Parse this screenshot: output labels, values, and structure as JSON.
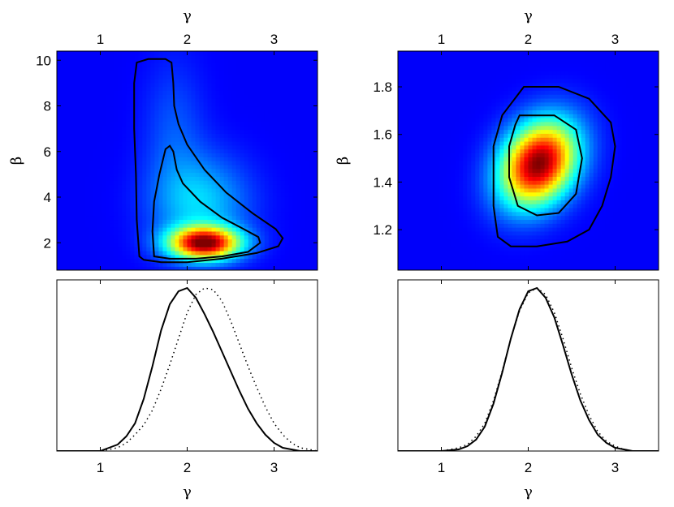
{
  "chart_data": [
    {
      "id": "top-left",
      "type": "heatmap",
      "xlabel": "γ",
      "ylabel": "β",
      "xlim": [
        0.5,
        3.5
      ],
      "ylim": [
        0.8,
        10.4
      ],
      "xticks": [
        1,
        2,
        3
      ],
      "yticks": [
        2,
        4,
        6,
        8,
        10
      ],
      "x_axis_position": "top",
      "colormap": "jet",
      "density_peak": {
        "x": 2.2,
        "y": 2.0
      },
      "contours": [
        {
          "level": "outer",
          "points": [
            [
              1.45,
              1.4
            ],
            [
              1.42,
              3
            ],
            [
              1.41,
              5
            ],
            [
              1.39,
              7
            ],
            [
              1.39,
              9
            ],
            [
              1.42,
              9.9
            ],
            [
              1.55,
              10.05
            ],
            [
              1.75,
              10.05
            ],
            [
              1.82,
              9.9
            ],
            [
              1.84,
              9
            ],
            [
              1.85,
              8
            ],
            [
              1.9,
              7.2
            ],
            [
              2.0,
              6.3
            ],
            [
              2.2,
              5.2
            ],
            [
              2.45,
              4.2
            ],
            [
              2.75,
              3.3
            ],
            [
              3.02,
              2.6
            ],
            [
              3.1,
              2.2
            ],
            [
              3.05,
              1.85
            ],
            [
              2.8,
              1.55
            ],
            [
              2.4,
              1.3
            ],
            [
              2.0,
              1.15
            ],
            [
              1.7,
              1.15
            ],
            [
              1.5,
              1.25
            ],
            [
              1.45,
              1.4
            ]
          ]
        },
        {
          "level": "inner",
          "points": [
            [
              1.62,
              1.4
            ],
            [
              1.6,
              2.5
            ],
            [
              1.62,
              3.8
            ],
            [
              1.68,
              5
            ],
            [
              1.75,
              6.1
            ],
            [
              1.8,
              6.25
            ],
            [
              1.84,
              6.0
            ],
            [
              1.88,
              5.2
            ],
            [
              1.95,
              4.6
            ],
            [
              2.15,
              3.8
            ],
            [
              2.4,
              3.1
            ],
            [
              2.65,
              2.6
            ],
            [
              2.82,
              2.25
            ],
            [
              2.84,
              2.0
            ],
            [
              2.7,
              1.6
            ],
            [
              2.4,
              1.4
            ],
            [
              2.1,
              1.3
            ],
            [
              1.8,
              1.3
            ],
            [
              1.62,
              1.4
            ]
          ]
        }
      ]
    },
    {
      "id": "top-right",
      "type": "heatmap",
      "xlabel": "γ",
      "ylabel": "β",
      "xlim": [
        0.5,
        3.5
      ],
      "ylim": [
        1.03,
        1.95
      ],
      "xticks": [
        1,
        2,
        3
      ],
      "yticks": [
        1.2,
        1.4,
        1.6,
        1.8
      ],
      "x_axis_position": "top",
      "colormap": "jet",
      "density_peak": {
        "x": 2.1,
        "y": 1.48
      },
      "contours": [
        {
          "level": "outer",
          "points": [
            [
              1.95,
              1.8
            ],
            [
              2.35,
              1.8
            ],
            [
              2.7,
              1.75
            ],
            [
              2.95,
              1.65
            ],
            [
              3.0,
              1.55
            ],
            [
              2.95,
              1.42
            ],
            [
              2.85,
              1.3
            ],
            [
              2.7,
              1.2
            ],
            [
              2.45,
              1.15
            ],
            [
              2.1,
              1.13
            ],
            [
              1.8,
              1.13
            ],
            [
              1.65,
              1.17
            ],
            [
              1.6,
              1.3
            ],
            [
              1.6,
              1.55
            ],
            [
              1.7,
              1.68
            ],
            [
              1.95,
              1.8
            ]
          ]
        },
        {
          "level": "inner",
          "points": [
            [
              1.9,
              1.68
            ],
            [
              2.3,
              1.68
            ],
            [
              2.55,
              1.62
            ],
            [
              2.62,
              1.5
            ],
            [
              2.55,
              1.35
            ],
            [
              2.35,
              1.27
            ],
            [
              2.1,
              1.26
            ],
            [
              1.88,
              1.3
            ],
            [
              1.78,
              1.42
            ],
            [
              1.78,
              1.55
            ],
            [
              1.85,
              1.64
            ],
            [
              1.9,
              1.68
            ]
          ]
        }
      ]
    },
    {
      "id": "bottom-left",
      "type": "line",
      "xlabel": "γ",
      "ylabel": "",
      "xlim": [
        0.5,
        3.5
      ],
      "ylim": [
        0,
        1.05
      ],
      "xticks": [
        1,
        2,
        3
      ],
      "series": [
        {
          "style": "solid",
          "x": [
            0.5,
            1.0,
            1.1,
            1.2,
            1.3,
            1.4,
            1.5,
            1.6,
            1.7,
            1.8,
            1.9,
            2.0,
            2.1,
            2.2,
            2.3,
            2.4,
            2.5,
            2.6,
            2.7,
            2.8,
            2.9,
            3.0,
            3.1,
            3.2,
            3.3,
            3.5
          ],
          "y": [
            0.0,
            0.0,
            0.02,
            0.04,
            0.09,
            0.17,
            0.32,
            0.52,
            0.74,
            0.9,
            0.98,
            1.0,
            0.94,
            0.84,
            0.73,
            0.61,
            0.49,
            0.37,
            0.26,
            0.17,
            0.1,
            0.05,
            0.02,
            0.01,
            0.0,
            0.0
          ]
        },
        {
          "style": "dotted",
          "x": [
            0.5,
            1.0,
            1.2,
            1.3,
            1.4,
            1.5,
            1.6,
            1.7,
            1.8,
            1.9,
            2.0,
            2.1,
            2.2,
            2.3,
            2.4,
            2.5,
            2.6,
            2.7,
            2.8,
            2.9,
            3.0,
            3.1,
            3.2,
            3.3,
            3.4,
            3.5
          ],
          "y": [
            0.0,
            0.0,
            0.02,
            0.05,
            0.1,
            0.16,
            0.25,
            0.38,
            0.53,
            0.69,
            0.85,
            0.96,
            1.0,
            0.99,
            0.92,
            0.8,
            0.66,
            0.52,
            0.39,
            0.27,
            0.17,
            0.1,
            0.05,
            0.02,
            0.01,
            0.0
          ]
        }
      ]
    },
    {
      "id": "bottom-right",
      "type": "line",
      "xlabel": "γ",
      "ylabel": "",
      "xlim": [
        0.5,
        3.5
      ],
      "ylim": [
        0,
        1.05
      ],
      "xticks": [
        1,
        2,
        3
      ],
      "series": [
        {
          "style": "solid",
          "x": [
            0.5,
            1.0,
            1.2,
            1.3,
            1.4,
            1.5,
            1.6,
            1.7,
            1.8,
            1.9,
            2.0,
            2.1,
            2.2,
            2.3,
            2.4,
            2.5,
            2.6,
            2.7,
            2.8,
            2.9,
            3.0,
            3.1,
            3.2,
            3.5
          ],
          "y": [
            0.0,
            0.0,
            0.01,
            0.03,
            0.07,
            0.15,
            0.29,
            0.48,
            0.69,
            0.87,
            0.98,
            1.0,
            0.94,
            0.82,
            0.65,
            0.47,
            0.31,
            0.19,
            0.1,
            0.05,
            0.02,
            0.01,
            0.0,
            0.0
          ]
        },
        {
          "style": "dotted",
          "x": [
            0.5,
            1.0,
            1.2,
            1.3,
            1.4,
            1.5,
            1.6,
            1.7,
            1.8,
            1.9,
            2.0,
            2.1,
            2.2,
            2.3,
            2.4,
            2.5,
            2.6,
            2.7,
            2.8,
            2.9,
            3.0,
            3.1,
            3.2,
            3.5
          ],
          "y": [
            0.0,
            0.0,
            0.02,
            0.04,
            0.09,
            0.17,
            0.31,
            0.49,
            0.69,
            0.86,
            0.97,
            1.0,
            0.96,
            0.85,
            0.69,
            0.51,
            0.35,
            0.22,
            0.12,
            0.06,
            0.03,
            0.01,
            0.0,
            0.0
          ]
        }
      ]
    }
  ]
}
